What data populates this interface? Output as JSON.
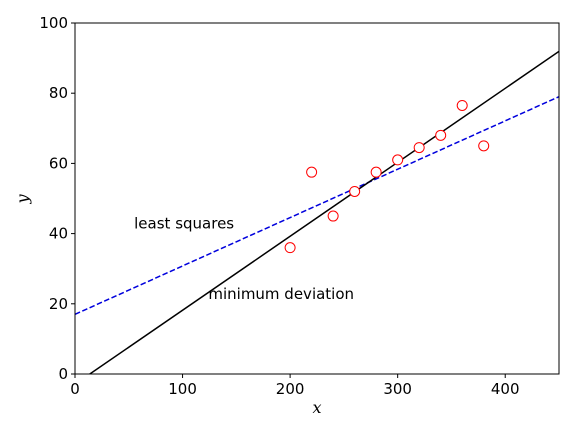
{
  "chart_data": {
    "type": "scatter",
    "title": "",
    "xlabel": "x",
    "ylabel": "y",
    "xlim": [
      0,
      450
    ],
    "ylim": [
      0,
      100
    ],
    "xticks": [
      0,
      100,
      200,
      300,
      400
    ],
    "yticks": [
      0,
      20,
      40,
      60,
      80,
      100
    ],
    "grid": false,
    "points": {
      "x": [
        200,
        220,
        240,
        260,
        280,
        300,
        320,
        340,
        360,
        380
      ],
      "y": [
        36,
        57.5,
        45,
        52,
        57.5,
        61,
        64.5,
        68,
        76.5,
        65
      ],
      "marker_color": "#ff0000"
    },
    "lines": [
      {
        "label": "least squares",
        "style": "dashed",
        "color": "#0000dd",
        "intercept": 17,
        "slope": 0.1378
      },
      {
        "label": "minimum deviation",
        "style": "solid",
        "color": "#000000",
        "intercept": -2.9,
        "slope": 0.2107
      }
    ],
    "annotations": [
      {
        "text": "least squares",
        "x": 55,
        "y": 40
      },
      {
        "text": "minimum deviation",
        "x": 124,
        "y": 20
      }
    ]
  }
}
